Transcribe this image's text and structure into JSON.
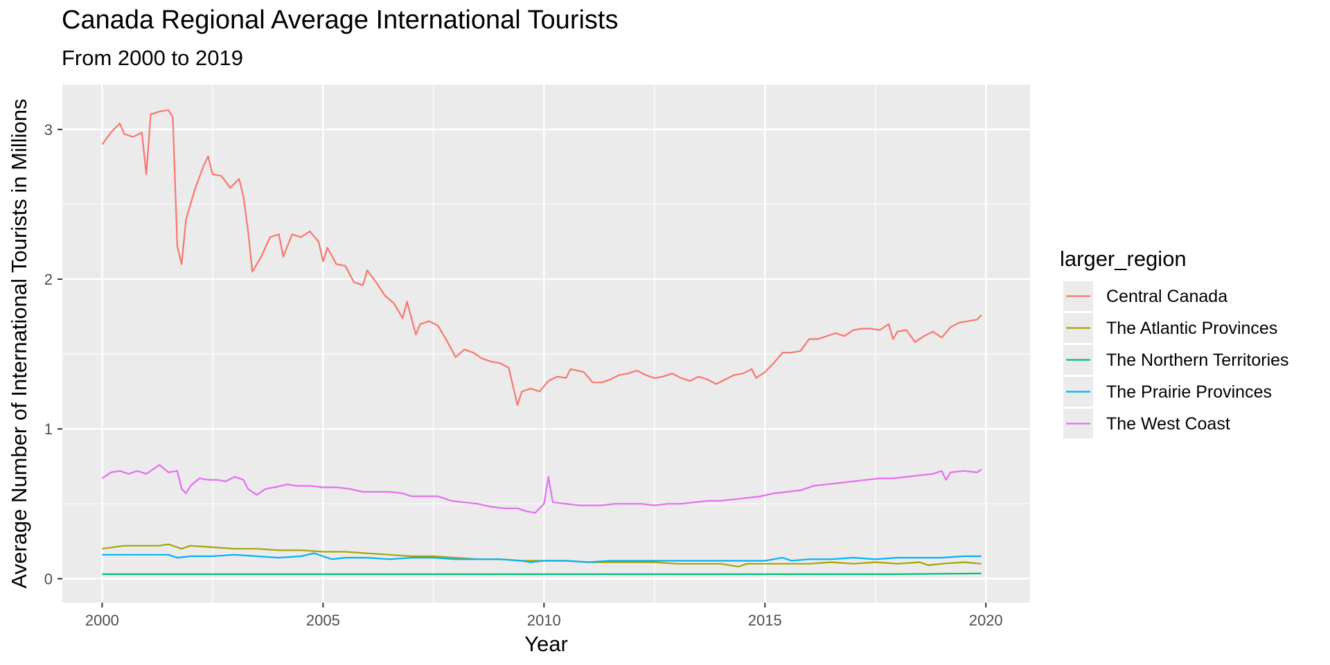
{
  "chart_data": {
    "type": "line",
    "title": "Canada Regional Average International Tourists",
    "subtitle": "From 2000 to 2019",
    "xlabel": "Year",
    "ylabel": "Average Number of International Tourists in Millions",
    "xlim": [
      1999.1,
      2021.0
    ],
    "ylim": [
      -0.16,
      3.3
    ],
    "x_ticks": [
      2000,
      2005,
      2010,
      2015,
      2020
    ],
    "y_ticks": [
      0,
      1,
      2,
      3
    ],
    "grid": true,
    "legend_title": "larger_region",
    "legend_position": "right",
    "series": [
      {
        "name": "Central Canada",
        "color": "#F8766D",
        "points": [
          [
            2000.0,
            2.9
          ],
          [
            2000.2,
            2.98
          ],
          [
            2000.4,
            3.04
          ],
          [
            2000.5,
            2.97
          ],
          [
            2000.7,
            2.95
          ],
          [
            2000.9,
            2.98
          ],
          [
            2001.0,
            2.7
          ],
          [
            2001.1,
            3.1
          ],
          [
            2001.3,
            3.12
          ],
          [
            2001.5,
            3.13
          ],
          [
            2001.6,
            3.08
          ],
          [
            2001.7,
            2.22
          ],
          [
            2001.8,
            2.1
          ],
          [
            2001.9,
            2.4
          ],
          [
            2002.1,
            2.6
          ],
          [
            2002.3,
            2.76
          ],
          [
            2002.4,
            2.82
          ],
          [
            2002.5,
            2.7
          ],
          [
            2002.7,
            2.69
          ],
          [
            2002.9,
            2.61
          ],
          [
            2003.1,
            2.67
          ],
          [
            2003.2,
            2.55
          ],
          [
            2003.3,
            2.33
          ],
          [
            2003.4,
            2.05
          ],
          [
            2003.6,
            2.15
          ],
          [
            2003.8,
            2.28
          ],
          [
            2004.0,
            2.3
          ],
          [
            2004.1,
            2.15
          ],
          [
            2004.3,
            2.3
          ],
          [
            2004.5,
            2.28
          ],
          [
            2004.7,
            2.32
          ],
          [
            2004.9,
            2.25
          ],
          [
            2005.0,
            2.12
          ],
          [
            2005.1,
            2.21
          ],
          [
            2005.3,
            2.1
          ],
          [
            2005.5,
            2.09
          ],
          [
            2005.7,
            1.98
          ],
          [
            2005.9,
            1.96
          ],
          [
            2006.0,
            2.06
          ],
          [
            2006.2,
            1.98
          ],
          [
            2006.4,
            1.89
          ],
          [
            2006.6,
            1.84
          ],
          [
            2006.8,
            1.74
          ],
          [
            2006.9,
            1.85
          ],
          [
            2007.1,
            1.63
          ],
          [
            2007.2,
            1.7
          ],
          [
            2007.4,
            1.72
          ],
          [
            2007.6,
            1.69
          ],
          [
            2007.8,
            1.59
          ],
          [
            2008.0,
            1.48
          ],
          [
            2008.2,
            1.53
          ],
          [
            2008.4,
            1.51
          ],
          [
            2008.6,
            1.47
          ],
          [
            2008.8,
            1.45
          ],
          [
            2009.0,
            1.44
          ],
          [
            2009.2,
            1.41
          ],
          [
            2009.4,
            1.16
          ],
          [
            2009.5,
            1.25
          ],
          [
            2009.7,
            1.27
          ],
          [
            2009.9,
            1.25
          ],
          [
            2010.1,
            1.32
          ],
          [
            2010.3,
            1.35
          ],
          [
            2010.5,
            1.34
          ],
          [
            2010.6,
            1.4
          ],
          [
            2010.9,
            1.38
          ],
          [
            2011.1,
            1.31
          ],
          [
            2011.3,
            1.31
          ],
          [
            2011.5,
            1.33
          ],
          [
            2011.7,
            1.36
          ],
          [
            2011.9,
            1.37
          ],
          [
            2012.1,
            1.39
          ],
          [
            2012.3,
            1.36
          ],
          [
            2012.5,
            1.34
          ],
          [
            2012.7,
            1.35
          ],
          [
            2012.9,
            1.37
          ],
          [
            2013.1,
            1.34
          ],
          [
            2013.3,
            1.32
          ],
          [
            2013.5,
            1.35
          ],
          [
            2013.7,
            1.33
          ],
          [
            2013.9,
            1.3
          ],
          [
            2014.1,
            1.33
          ],
          [
            2014.3,
            1.36
          ],
          [
            2014.5,
            1.37
          ],
          [
            2014.7,
            1.4
          ],
          [
            2014.8,
            1.34
          ],
          [
            2015.0,
            1.38
          ],
          [
            2015.2,
            1.44
          ],
          [
            2015.4,
            1.51
          ],
          [
            2015.6,
            1.51
          ],
          [
            2015.8,
            1.52
          ],
          [
            2016.0,
            1.6
          ],
          [
            2016.2,
            1.6
          ],
          [
            2016.4,
            1.62
          ],
          [
            2016.6,
            1.64
          ],
          [
            2016.8,
            1.62
          ],
          [
            2017.0,
            1.66
          ],
          [
            2017.2,
            1.67
          ],
          [
            2017.4,
            1.67
          ],
          [
            2017.6,
            1.66
          ],
          [
            2017.8,
            1.7
          ],
          [
            2017.9,
            1.6
          ],
          [
            2018.0,
            1.65
          ],
          [
            2018.2,
            1.66
          ],
          [
            2018.4,
            1.58
          ],
          [
            2018.6,
            1.62
          ],
          [
            2018.8,
            1.65
          ],
          [
            2019.0,
            1.61
          ],
          [
            2019.2,
            1.68
          ],
          [
            2019.4,
            1.71
          ],
          [
            2019.6,
            1.72
          ],
          [
            2019.8,
            1.73
          ],
          [
            2019.9,
            1.76
          ]
        ]
      },
      {
        "name": "The Atlantic Provinces",
        "color": "#A3A500",
        "points": [
          [
            2000.0,
            0.2
          ],
          [
            2000.5,
            0.22
          ],
          [
            2001.0,
            0.22
          ],
          [
            2001.3,
            0.22
          ],
          [
            2001.5,
            0.23
          ],
          [
            2001.8,
            0.2
          ],
          [
            2002.0,
            0.22
          ],
          [
            2002.5,
            0.21
          ],
          [
            2003.0,
            0.2
          ],
          [
            2003.5,
            0.2
          ],
          [
            2004.0,
            0.19
          ],
          [
            2004.5,
            0.19
          ],
          [
            2005.0,
            0.18
          ],
          [
            2005.5,
            0.18
          ],
          [
            2006.0,
            0.17
          ],
          [
            2006.5,
            0.16
          ],
          [
            2007.0,
            0.15
          ],
          [
            2007.5,
            0.15
          ],
          [
            2008.0,
            0.14
          ],
          [
            2008.5,
            0.13
          ],
          [
            2009.0,
            0.13
          ],
          [
            2009.5,
            0.12
          ],
          [
            2010.0,
            0.12
          ],
          [
            2010.5,
            0.12
          ],
          [
            2011.0,
            0.11
          ],
          [
            2011.5,
            0.11
          ],
          [
            2012.0,
            0.11
          ],
          [
            2012.5,
            0.11
          ],
          [
            2013.0,
            0.1
          ],
          [
            2013.5,
            0.1
          ],
          [
            2014.0,
            0.1
          ],
          [
            2014.4,
            0.08
          ],
          [
            2014.6,
            0.1
          ],
          [
            2015.0,
            0.1
          ],
          [
            2015.5,
            0.1
          ],
          [
            2016.0,
            0.1
          ],
          [
            2016.5,
            0.11
          ],
          [
            2017.0,
            0.1
          ],
          [
            2017.5,
            0.11
          ],
          [
            2018.0,
            0.1
          ],
          [
            2018.5,
            0.11
          ],
          [
            2018.7,
            0.09
          ],
          [
            2019.0,
            0.1
          ],
          [
            2019.5,
            0.11
          ],
          [
            2019.9,
            0.1
          ]
        ]
      },
      {
        "name": "The Northern Territories",
        "color": "#00BF7D",
        "points": [
          [
            2000.0,
            0.03
          ],
          [
            2002.0,
            0.03
          ],
          [
            2004.0,
            0.03
          ],
          [
            2006.0,
            0.03
          ],
          [
            2008.0,
            0.03
          ],
          [
            2010.0,
            0.03
          ],
          [
            2012.0,
            0.03
          ],
          [
            2014.0,
            0.03
          ],
          [
            2016.0,
            0.03
          ],
          [
            2018.0,
            0.03
          ],
          [
            2019.9,
            0.035
          ]
        ]
      },
      {
        "name": "The Prairie Provinces",
        "color": "#00B0F6",
        "points": [
          [
            2000.0,
            0.16
          ],
          [
            2000.5,
            0.16
          ],
          [
            2001.0,
            0.16
          ],
          [
            2001.5,
            0.16
          ],
          [
            2001.7,
            0.14
          ],
          [
            2002.0,
            0.15
          ],
          [
            2002.5,
            0.15
          ],
          [
            2003.0,
            0.16
          ],
          [
            2003.5,
            0.15
          ],
          [
            2004.0,
            0.14
          ],
          [
            2004.5,
            0.15
          ],
          [
            2004.8,
            0.17
          ],
          [
            2005.0,
            0.15
          ],
          [
            2005.2,
            0.13
          ],
          [
            2005.5,
            0.14
          ],
          [
            2006.0,
            0.14
          ],
          [
            2006.5,
            0.13
          ],
          [
            2007.0,
            0.14
          ],
          [
            2007.5,
            0.14
          ],
          [
            2008.0,
            0.13
          ],
          [
            2008.5,
            0.13
          ],
          [
            2009.0,
            0.13
          ],
          [
            2009.5,
            0.12
          ],
          [
            2009.7,
            0.11
          ],
          [
            2010.0,
            0.12
          ],
          [
            2010.5,
            0.12
          ],
          [
            2011.0,
            0.11
          ],
          [
            2011.5,
            0.12
          ],
          [
            2012.0,
            0.12
          ],
          [
            2012.5,
            0.12
          ],
          [
            2013.0,
            0.12
          ],
          [
            2013.5,
            0.12
          ],
          [
            2014.0,
            0.12
          ],
          [
            2014.5,
            0.12
          ],
          [
            2015.0,
            0.12
          ],
          [
            2015.4,
            0.14
          ],
          [
            2015.6,
            0.12
          ],
          [
            2016.0,
            0.13
          ],
          [
            2016.5,
            0.13
          ],
          [
            2017.0,
            0.14
          ],
          [
            2017.5,
            0.13
          ],
          [
            2018.0,
            0.14
          ],
          [
            2018.5,
            0.14
          ],
          [
            2019.0,
            0.14
          ],
          [
            2019.5,
            0.15
          ],
          [
            2019.9,
            0.15
          ]
        ]
      },
      {
        "name": "The West Coast",
        "color": "#E76BF3",
        "points": [
          [
            2000.0,
            0.67
          ],
          [
            2000.2,
            0.71
          ],
          [
            2000.4,
            0.72
          ],
          [
            2000.6,
            0.7
          ],
          [
            2000.8,
            0.72
          ],
          [
            2001.0,
            0.7
          ],
          [
            2001.2,
            0.74
          ],
          [
            2001.3,
            0.76
          ],
          [
            2001.5,
            0.71
          ],
          [
            2001.7,
            0.72
          ],
          [
            2001.8,
            0.6
          ],
          [
            2001.9,
            0.57
          ],
          [
            2002.0,
            0.62
          ],
          [
            2002.2,
            0.67
          ],
          [
            2002.4,
            0.66
          ],
          [
            2002.6,
            0.66
          ],
          [
            2002.8,
            0.65
          ],
          [
            2003.0,
            0.68
          ],
          [
            2003.2,
            0.66
          ],
          [
            2003.3,
            0.6
          ],
          [
            2003.5,
            0.56
          ],
          [
            2003.7,
            0.6
          ],
          [
            2003.9,
            0.61
          ],
          [
            2004.2,
            0.63
          ],
          [
            2004.4,
            0.62
          ],
          [
            2004.7,
            0.62
          ],
          [
            2005.0,
            0.61
          ],
          [
            2005.3,
            0.61
          ],
          [
            2005.6,
            0.6
          ],
          [
            2005.9,
            0.58
          ],
          [
            2006.2,
            0.58
          ],
          [
            2006.5,
            0.58
          ],
          [
            2006.8,
            0.57
          ],
          [
            2007.0,
            0.55
          ],
          [
            2007.3,
            0.55
          ],
          [
            2007.6,
            0.55
          ],
          [
            2007.9,
            0.52
          ],
          [
            2008.2,
            0.51
          ],
          [
            2008.5,
            0.5
          ],
          [
            2008.8,
            0.48
          ],
          [
            2009.1,
            0.47
          ],
          [
            2009.4,
            0.47
          ],
          [
            2009.6,
            0.45
          ],
          [
            2009.8,
            0.44
          ],
          [
            2010.0,
            0.5
          ],
          [
            2010.1,
            0.68
          ],
          [
            2010.2,
            0.51
          ],
          [
            2010.5,
            0.5
          ],
          [
            2010.8,
            0.49
          ],
          [
            2011.0,
            0.49
          ],
          [
            2011.3,
            0.49
          ],
          [
            2011.6,
            0.5
          ],
          [
            2011.9,
            0.5
          ],
          [
            2012.2,
            0.5
          ],
          [
            2012.5,
            0.49
          ],
          [
            2012.8,
            0.5
          ],
          [
            2013.1,
            0.5
          ],
          [
            2013.4,
            0.51
          ],
          [
            2013.7,
            0.52
          ],
          [
            2014.0,
            0.52
          ],
          [
            2014.3,
            0.53
          ],
          [
            2014.6,
            0.54
          ],
          [
            2014.9,
            0.55
          ],
          [
            2015.2,
            0.57
          ],
          [
            2015.5,
            0.58
          ],
          [
            2015.8,
            0.59
          ],
          [
            2016.1,
            0.62
          ],
          [
            2016.4,
            0.63
          ],
          [
            2016.7,
            0.64
          ],
          [
            2017.0,
            0.65
          ],
          [
            2017.3,
            0.66
          ],
          [
            2017.6,
            0.67
          ],
          [
            2017.9,
            0.67
          ],
          [
            2018.2,
            0.68
          ],
          [
            2018.5,
            0.69
          ],
          [
            2018.8,
            0.7
          ],
          [
            2019.0,
            0.72
          ],
          [
            2019.1,
            0.66
          ],
          [
            2019.2,
            0.71
          ],
          [
            2019.5,
            0.72
          ],
          [
            2019.8,
            0.71
          ],
          [
            2019.9,
            0.73
          ]
        ]
      }
    ]
  }
}
